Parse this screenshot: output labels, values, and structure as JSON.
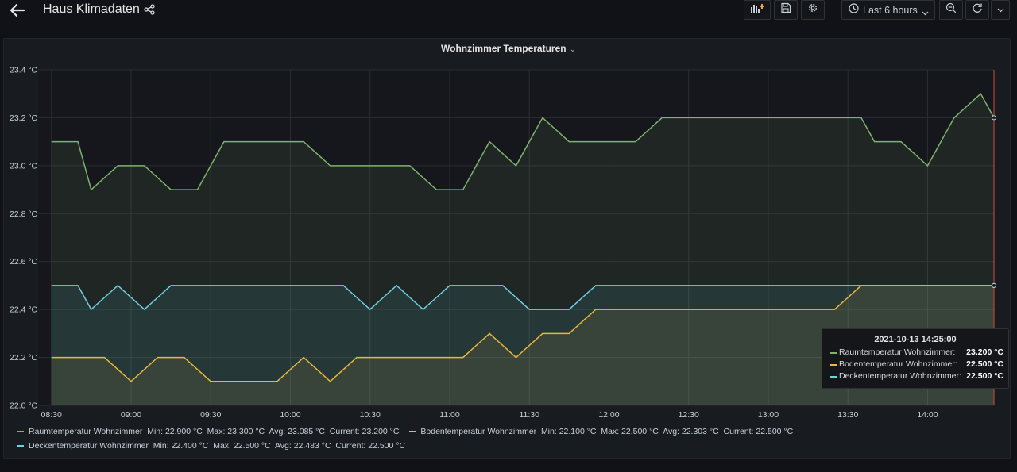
{
  "header": {
    "title": "Haus Klimadaten",
    "time_range": "Last 6 hours"
  },
  "panel": {
    "title": "Wohnzimmer Temperaturen"
  },
  "tooltip": {
    "time": "2021-10-13 14:25:00",
    "rows": [
      {
        "name": "Raumtemperatur Wohnzimmer:",
        "value": "23.200 °C",
        "color": "#7eb26d"
      },
      {
        "name": "Bodentemperatur Wohnzimmer:",
        "value": "22.500 °C",
        "color": "#eab839"
      },
      {
        "name": "Deckentemperatur Wohnzimmer:",
        "value": "22.500 °C",
        "color": "#6ed0e0"
      }
    ]
  },
  "legend": [
    {
      "name": "Raumtemperatur Wohnzimmer",
      "min": "Min: 22.900 °C",
      "max": "Max: 23.300 °C",
      "avg": "Avg: 23.085 °C",
      "current": "Current: 23.200 °C"
    },
    {
      "name": "Bodentemperatur Wohnzimmer",
      "min": "Min: 22.100 °C",
      "max": "Max: 22.500 °C",
      "avg": "Avg: 22.303 °C",
      "current": "Current: 22.500 °C"
    },
    {
      "name": "Deckentemperatur Wohnzimmer",
      "min": "Min: 22.400 °C",
      "max": "Max: 22.500 °C",
      "avg": "Avg: 22.483 °C",
      "current": "Current: 22.500 °C"
    }
  ],
  "chart_data": {
    "type": "line",
    "title": "Wohnzimmer Temperaturen",
    "x_ticks": [
      "08:30",
      "09:00",
      "09:30",
      "10:00",
      "10:30",
      "11:00",
      "11:30",
      "12:00",
      "12:30",
      "13:00",
      "13:30",
      "14:00"
    ],
    "x_tick_minutes": [
      510,
      540,
      570,
      600,
      630,
      660,
      690,
      720,
      750,
      780,
      810,
      840
    ],
    "xlim": [
      505,
      865
    ],
    "y_ticks": [
      "22.0 °C",
      "22.2 °C",
      "22.4 °C",
      "22.6 °C",
      "22.8 °C",
      "23.0 °C",
      "23.2 °C",
      "23.4 °C"
    ],
    "y_tick_values": [
      22.0,
      22.2,
      22.4,
      22.6,
      22.8,
      23.0,
      23.2,
      23.4
    ],
    "ylim": [
      22.0,
      23.4
    ],
    "grid": true,
    "legend_position": "bottom",
    "series": [
      {
        "name": "Raumtemperatur Wohnzimmer",
        "color": "#7eb26d",
        "times": [
          "08:30",
          "08:35",
          "08:40",
          "08:45",
          "08:50",
          "08:55",
          "09:00",
          "09:05",
          "09:10",
          "09:15",
          "09:20",
          "09:25",
          "09:30",
          "09:35",
          "09:40",
          "09:45",
          "09:50",
          "09:55",
          "10:00",
          "10:05",
          "10:10",
          "10:15",
          "10:20",
          "10:25",
          "10:30",
          "10:35",
          "10:40",
          "10:45",
          "10:50",
          "10:55",
          "11:00",
          "11:05",
          "11:10",
          "11:15",
          "11:20",
          "11:25",
          "11:30",
          "11:35",
          "11:40",
          "11:45",
          "11:50",
          "11:55",
          "12:00",
          "12:05",
          "12:10",
          "12:15",
          "12:20",
          "12:25",
          "12:30",
          "12:35",
          "12:40",
          "12:45",
          "12:50",
          "12:55",
          "13:00",
          "13:05",
          "13:10",
          "13:15",
          "13:20",
          "13:25",
          "13:30",
          "13:35",
          "13:40",
          "13:45",
          "13:50",
          "13:55",
          "14:00",
          "14:05",
          "14:10",
          "14:15",
          "14:20",
          "14:25"
        ],
        "values": [
          23.1,
          23.1,
          23.1,
          22.9,
          22.95,
          23.0,
          23.0,
          23.0,
          22.95,
          22.9,
          22.9,
          22.9,
          23.0,
          23.1,
          23.1,
          23.1,
          23.1,
          23.1,
          23.1,
          23.1,
          23.05,
          23.0,
          23.0,
          23.0,
          23.0,
          23.0,
          23.0,
          23.0,
          22.95,
          22.9,
          22.9,
          22.9,
          23.0,
          23.1,
          23.05,
          23.0,
          23.1,
          23.2,
          23.15,
          23.1,
          23.1,
          23.1,
          23.1,
          23.1,
          23.1,
          23.15,
          23.2,
          23.2,
          23.2,
          23.2,
          23.2,
          23.2,
          23.2,
          23.2,
          23.2,
          23.2,
          23.2,
          23.2,
          23.2,
          23.2,
          23.2,
          23.2,
          23.1,
          23.1,
          23.1,
          23.05,
          23.0,
          23.1,
          23.2,
          23.25,
          23.3,
          23.2
        ]
      },
      {
        "name": "Bodentemperatur Wohnzimmer",
        "color": "#eab839",
        "times": [
          "08:30",
          "08:35",
          "08:40",
          "08:45",
          "08:50",
          "08:55",
          "09:00",
          "09:05",
          "09:10",
          "09:15",
          "09:20",
          "09:25",
          "09:30",
          "09:35",
          "09:40",
          "09:45",
          "09:50",
          "09:55",
          "10:00",
          "10:05",
          "10:10",
          "10:15",
          "10:20",
          "10:25",
          "10:30",
          "10:35",
          "10:40",
          "10:45",
          "10:50",
          "10:55",
          "11:00",
          "11:05",
          "11:10",
          "11:15",
          "11:20",
          "11:25",
          "11:30",
          "11:35",
          "11:40",
          "11:45",
          "11:50",
          "11:55",
          "12:00",
          "12:05",
          "12:10",
          "12:15",
          "12:20",
          "12:25",
          "12:30",
          "12:35",
          "12:40",
          "12:45",
          "12:50",
          "12:55",
          "13:00",
          "13:05",
          "13:10",
          "13:15",
          "13:20",
          "13:25",
          "13:30",
          "13:35",
          "13:40",
          "13:45",
          "13:50",
          "13:55",
          "14:00",
          "14:05",
          "14:10",
          "14:15",
          "14:20",
          "14:25"
        ],
        "values": [
          22.2,
          22.2,
          22.2,
          22.2,
          22.2,
          22.15,
          22.1,
          22.15,
          22.2,
          22.2,
          22.2,
          22.15,
          22.1,
          22.1,
          22.1,
          22.1,
          22.1,
          22.1,
          22.15,
          22.2,
          22.15,
          22.1,
          22.15,
          22.2,
          22.2,
          22.2,
          22.2,
          22.2,
          22.2,
          22.2,
          22.2,
          22.2,
          22.25,
          22.3,
          22.25,
          22.2,
          22.25,
          22.3,
          22.3,
          22.3,
          22.35,
          22.4,
          22.4,
          22.4,
          22.4,
          22.4,
          22.4,
          22.4,
          22.4,
          22.4,
          22.4,
          22.4,
          22.4,
          22.4,
          22.4,
          22.4,
          22.4,
          22.4,
          22.4,
          22.4,
          22.45,
          22.5,
          22.5,
          22.5,
          22.5,
          22.5,
          22.5,
          22.5,
          22.5,
          22.5,
          22.5,
          22.5
        ]
      },
      {
        "name": "Deckentemperatur Wohnzimmer",
        "color": "#6ed0e0",
        "times": [
          "08:30",
          "08:35",
          "08:40",
          "08:45",
          "08:50",
          "08:55",
          "09:00",
          "09:05",
          "09:10",
          "09:15",
          "09:20",
          "09:25",
          "09:30",
          "09:35",
          "09:40",
          "09:45",
          "09:50",
          "09:55",
          "10:00",
          "10:05",
          "10:10",
          "10:15",
          "10:20",
          "10:25",
          "10:30",
          "10:35",
          "10:40",
          "10:45",
          "10:50",
          "10:55",
          "11:00",
          "11:05",
          "11:10",
          "11:15",
          "11:20",
          "11:25",
          "11:30",
          "11:35",
          "11:40",
          "11:45",
          "11:50",
          "11:55",
          "12:00",
          "12:05",
          "12:10",
          "12:15",
          "12:20",
          "12:25",
          "12:30",
          "12:35",
          "12:40",
          "12:45",
          "12:50",
          "12:55",
          "13:00",
          "13:05",
          "13:10",
          "13:15",
          "13:20",
          "13:25",
          "13:30",
          "13:35",
          "13:40",
          "13:45",
          "13:50",
          "13:55",
          "14:00",
          "14:05",
          "14:10",
          "14:15",
          "14:20",
          "14:25"
        ],
        "values": [
          22.5,
          22.5,
          22.5,
          22.4,
          22.45,
          22.5,
          22.45,
          22.4,
          22.45,
          22.5,
          22.5,
          22.5,
          22.5,
          22.5,
          22.5,
          22.5,
          22.5,
          22.5,
          22.5,
          22.5,
          22.5,
          22.5,
          22.5,
          22.45,
          22.4,
          22.45,
          22.5,
          22.45,
          22.4,
          22.45,
          22.5,
          22.5,
          22.5,
          22.5,
          22.5,
          22.45,
          22.4,
          22.4,
          22.4,
          22.4,
          22.45,
          22.5,
          22.5,
          22.5,
          22.5,
          22.5,
          22.5,
          22.5,
          22.5,
          22.5,
          22.5,
          22.5,
          22.5,
          22.5,
          22.5,
          22.5,
          22.5,
          22.5,
          22.5,
          22.5,
          22.5,
          22.5,
          22.5,
          22.5,
          22.5,
          22.5,
          22.5,
          22.5,
          22.5,
          22.5,
          22.5,
          22.5
        ]
      }
    ]
  }
}
